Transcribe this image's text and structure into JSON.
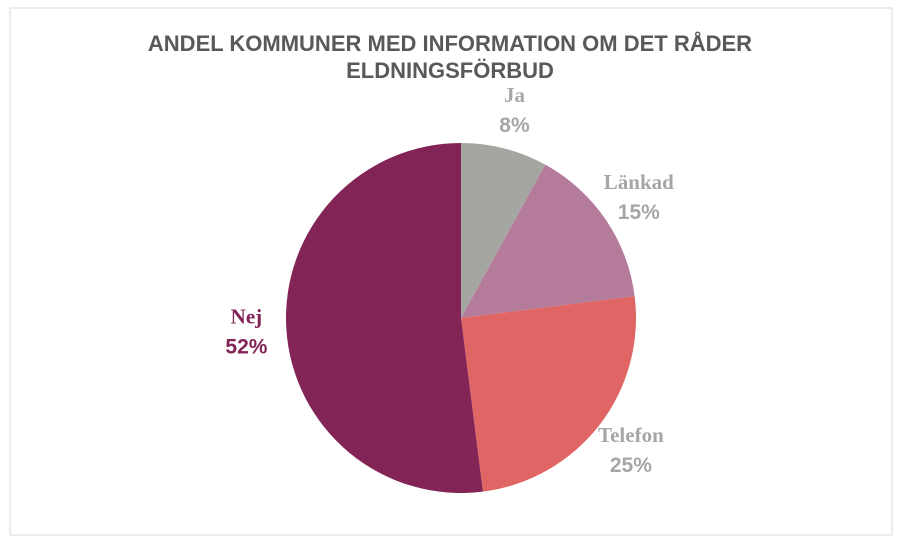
{
  "chart_data": {
    "type": "pie",
    "title": "ANDEL KOMMUNER MED INFORMATION OM DET RÅDER ELDNINGSFÖRBUD",
    "categories": [
      "Ja",
      "Länkad",
      "Telefon",
      "Nej"
    ],
    "values": [
      8,
      15,
      25,
      52
    ],
    "value_labels": [
      "8%",
      "15%",
      "25%",
      "52%"
    ],
    "colors": [
      "#a5a5a1",
      "#b47b9a",
      "#e06666",
      "#832456"
    ],
    "label_colors": [
      "#a6a6a6",
      "#a6a6a6",
      "#a6a6a6",
      "#832456"
    ]
  }
}
